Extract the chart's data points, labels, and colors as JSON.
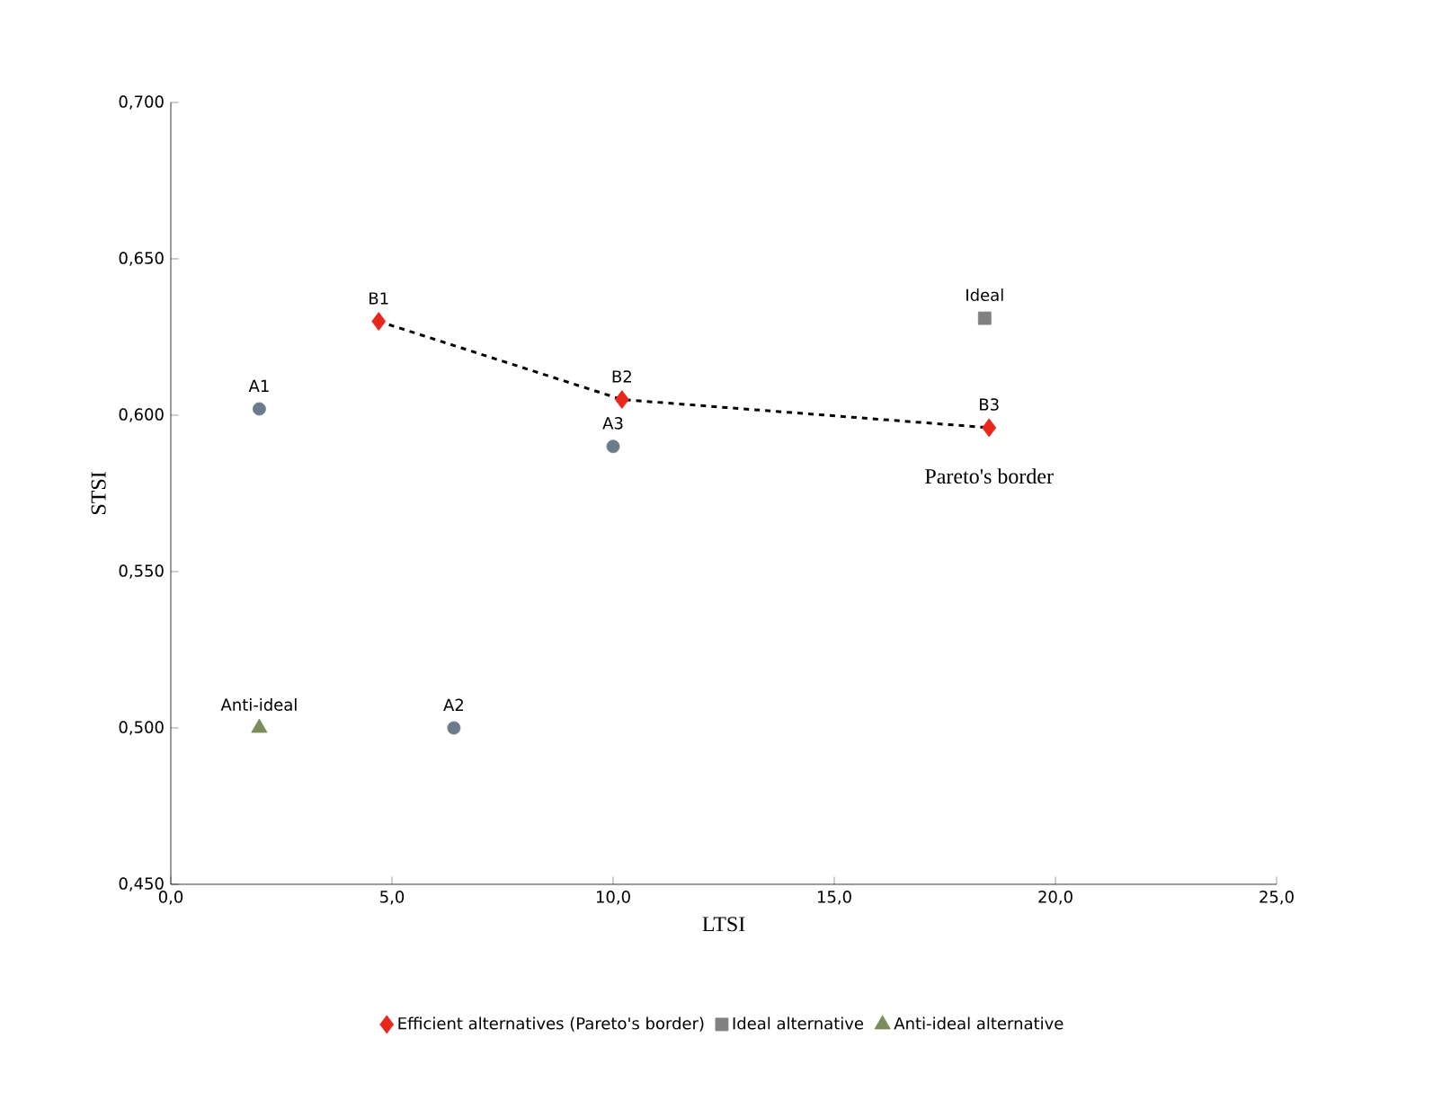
{
  "chart_data": {
    "type": "scatter",
    "xlabel": "LTSI",
    "ylabel": "STSI",
    "xlim": [
      0,
      25
    ],
    "ylim": [
      0.45,
      0.7
    ],
    "xticks": [
      {
        "value": 0,
        "label": "0,0"
      },
      {
        "value": 5,
        "label": "5,0"
      },
      {
        "value": 10,
        "label": "10,0"
      },
      {
        "value": 15,
        "label": "15,0"
      },
      {
        "value": 20,
        "label": "20,0"
      },
      {
        "value": 25,
        "label": "25,0"
      }
    ],
    "yticks": [
      {
        "value": 0.45,
        "label": "0,450"
      },
      {
        "value": 0.5,
        "label": "0,500"
      },
      {
        "value": 0.55,
        "label": "0,550"
      },
      {
        "value": 0.6,
        "label": "0,600"
      },
      {
        "value": 0.65,
        "label": "0,650"
      },
      {
        "value": 0.7,
        "label": "0,700"
      }
    ],
    "grid": false,
    "legend": "bottom",
    "series": [
      {
        "color": "#6b7b8c",
        "marker": "circle",
        "x": [
          2.0,
          6.4,
          10.0
        ],
        "values": [
          0.602,
          0.5,
          0.59
        ]
      },
      {
        "type": "line",
        "color": "#000000",
        "line_style": "dashed",
        "marker": "none",
        "x": [
          4.7,
          10.2,
          18.5
        ],
        "values": [
          0.63,
          0.605,
          0.596
        ]
      },
      {
        "name": "Efficient alternatives (Pareto's border)",
        "color": "#e8261c",
        "marker": "diamond",
        "x": [
          4.7,
          10.2,
          18.5
        ],
        "values": [
          0.63,
          0.605,
          0.596
        ]
      },
      {
        "name": "Ideal alternative",
        "color": "#808080",
        "marker": "square",
        "x": [
          18.4
        ],
        "values": [
          0.631
        ]
      },
      {
        "name": "Anti-ideal alternative",
        "color": "#7a8c5a",
        "marker": "triangle",
        "x": [
          2.0
        ],
        "values": [
          0.5
        ]
      }
    ],
    "annotations": [
      {
        "text": "A1",
        "x": 2.0,
        "y": 0.602
      },
      {
        "text": "A2",
        "x": 6.4,
        "y": 0.5
      },
      {
        "text": "A3",
        "x": 10.0,
        "y": 0.59
      },
      {
        "text": "B1",
        "x": 4.7,
        "y": 0.63
      },
      {
        "text": "B2",
        "x": 10.2,
        "y": 0.605
      },
      {
        "text": "B3",
        "x": 18.5,
        "y": 0.596
      },
      {
        "text": "Ideal",
        "x": 18.4,
        "y": 0.631
      },
      {
        "text": "Anti-ideal",
        "x": 2.0,
        "y": 0.5
      },
      "Pareto's border"
    ]
  }
}
